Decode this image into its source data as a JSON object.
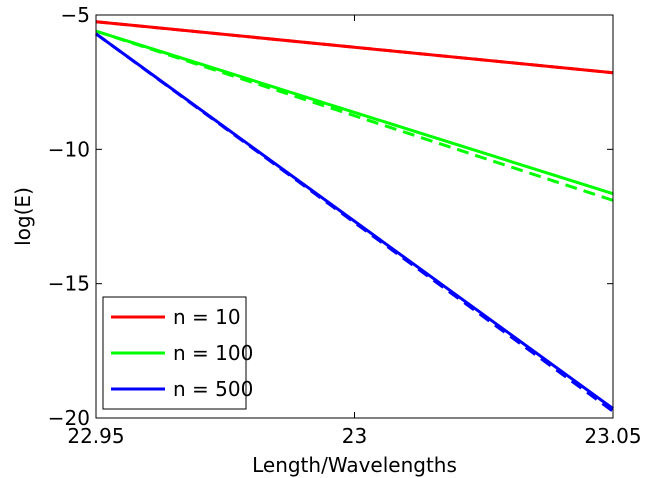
{
  "chart_data": {
    "type": "line",
    "xlabel": "Length/Wavelengths",
    "ylabel": "log(E)",
    "xlim": [
      22.95,
      23.05
    ],
    "ylim": [
      -20,
      -5
    ],
    "xticks": [
      22.95,
      23,
      23.05
    ],
    "xtick_labels": [
      "22.95",
      "23",
      "23.05"
    ],
    "yticks": [
      -20,
      -15,
      -10,
      -5
    ],
    "ytick_labels": [
      "−20",
      "−15",
      "−10",
      "−5"
    ],
    "grid": false,
    "legend_position": "bottom-left",
    "series": [
      {
        "name": "n = 10",
        "color": "#ff0000",
        "style": "solid",
        "x": [
          22.95,
          23.05
        ],
        "y": [
          -5.25,
          -7.15
        ]
      },
      {
        "color": "#ff0000",
        "style": "dashed",
        "x": [
          22.95,
          23.05
        ],
        "y": [
          -5.25,
          -7.15
        ]
      },
      {
        "name": "n = 100",
        "color": "#00ff00",
        "style": "solid",
        "x": [
          22.95,
          23.05
        ],
        "y": [
          -5.6,
          -11.65
        ]
      },
      {
        "color": "#00ff00",
        "style": "dashed",
        "x": [
          22.95,
          23.05
        ],
        "y": [
          -5.6,
          -11.9
        ]
      },
      {
        "name": "n = 500",
        "color": "#0000ff",
        "style": "solid",
        "x": [
          22.95,
          23.05
        ],
        "y": [
          -5.7,
          -19.65
        ]
      },
      {
        "color": "#0000ff",
        "style": "dashed",
        "x": [
          22.95,
          23.05
        ],
        "y": [
          -5.7,
          -19.75
        ]
      }
    ]
  }
}
